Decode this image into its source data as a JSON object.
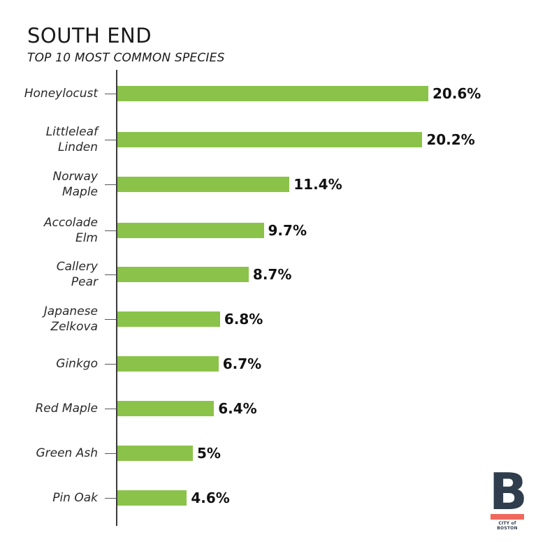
{
  "header": {
    "title": "SOUTH END",
    "subtitle": "TOP 10 MOST COMMON SPECIES"
  },
  "colors": {
    "bar": "#8bc34a",
    "logo_primary": "#2f3d4c",
    "logo_accent": "#f0685c"
  },
  "bars": [
    {
      "label_line1": "Honeylocust",
      "label_line2": "",
      "value": 20.6,
      "value_label": "20.6%"
    },
    {
      "label_line1": "Littleleaf",
      "label_line2": "Linden",
      "value": 20.2,
      "value_label": "20.2%"
    },
    {
      "label_line1": "Norway",
      "label_line2": "Maple",
      "value": 11.4,
      "value_label": "11.4%"
    },
    {
      "label_line1": "Accolade",
      "label_line2": "Elm",
      "value": 9.7,
      "value_label": "9.7%"
    },
    {
      "label_line1": "Callery",
      "label_line2": "Pear",
      "value": 8.7,
      "value_label": "8.7%"
    },
    {
      "label_line1": "Japanese",
      "label_line2": "Zelkova",
      "value": 6.8,
      "value_label": "6.8%"
    },
    {
      "label_line1": "Ginkgo",
      "label_line2": "",
      "value": 6.7,
      "value_label": "6.7%"
    },
    {
      "label_line1": "Red Maple",
      "label_line2": "",
      "value": 6.4,
      "value_label": "6.4%"
    },
    {
      "label_line1": "Green Ash",
      "label_line2": "",
      "value": 5,
      "value_label": "5%"
    },
    {
      "label_line1": "Pin Oak",
      "label_line2": "",
      "value": 4.6,
      "value_label": "4.6%"
    }
  ],
  "logo": {
    "letter": "B",
    "text": "CITY of BOSTON"
  },
  "chart_data": {
    "type": "bar",
    "orientation": "horizontal",
    "title": "SOUTH END",
    "subtitle": "TOP 10 MOST COMMON SPECIES",
    "categories": [
      "Honeylocust",
      "Littleleaf Linden",
      "Norway Maple",
      "Accolade Elm",
      "Callery Pear",
      "Japanese Zelkova",
      "Ginkgo",
      "Red Maple",
      "Green Ash",
      "Pin Oak"
    ],
    "values": [
      20.6,
      20.2,
      11.4,
      9.7,
      8.7,
      6.8,
      6.7,
      6.4,
      5,
      4.6
    ],
    "value_labels": [
      "20.6%",
      "20.2%",
      "11.4%",
      "9.7%",
      "8.7%",
      "6.8%",
      "6.7%",
      "6.4%",
      "5%",
      "4.6%"
    ],
    "xlabel": "",
    "ylabel": "",
    "unit": "%",
    "grid": false,
    "legend": null
  }
}
